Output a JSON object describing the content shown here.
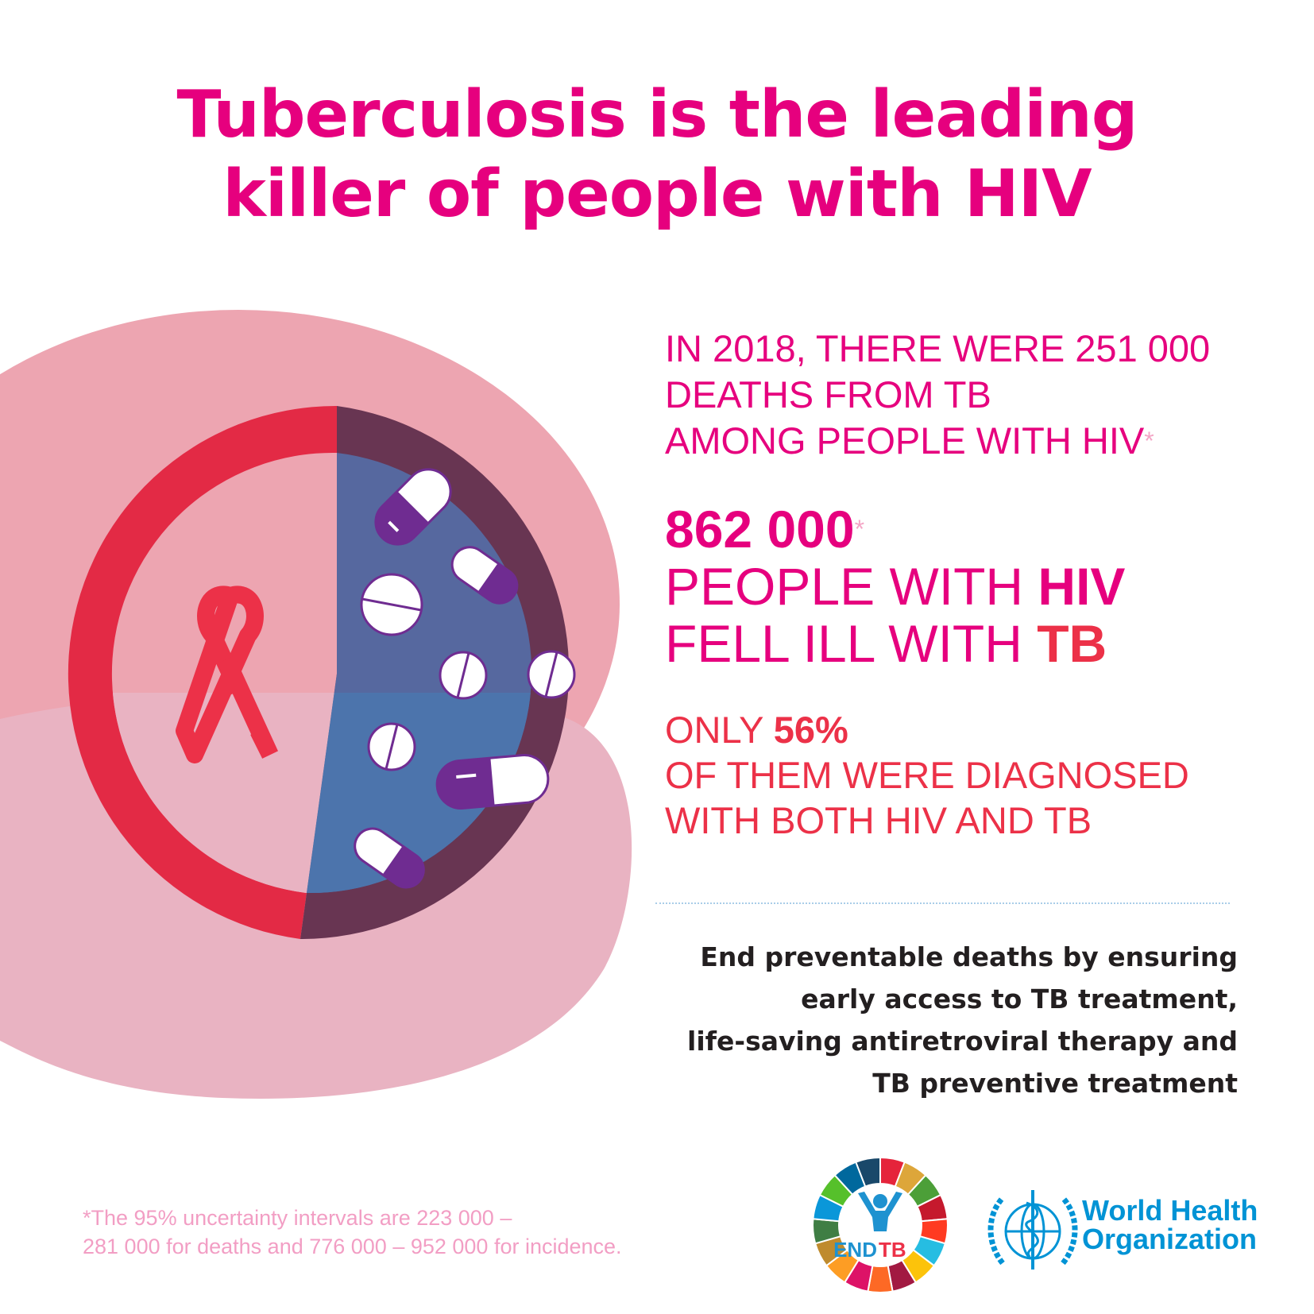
{
  "title": {
    "line1": "Tuberculosis is the leading",
    "line2": "killer of people with HIV"
  },
  "stats": {
    "deaths": {
      "line1": "IN 2018, THERE WERE 251 000",
      "line2": "DEATHS FROM TB",
      "line3": "AMONG PEOPLE WITH HIV",
      "asterisk": "*"
    },
    "incidence": {
      "number": "862 000",
      "asterisk": "*",
      "line2_prefix": "PEOPLE WITH ",
      "line2_bold": "HIV",
      "line3_prefix": "FELL ILL WITH ",
      "line3_bold": "TB"
    },
    "diagnosed": {
      "prefix": "ONLY ",
      "percent": "56%",
      "line2": "OF THEM WERE DIAGNOSED",
      "line3": "WITH BOTH HIV AND TB",
      "value_percent": 56
    }
  },
  "call_to_action": {
    "line1": "End preventable deaths by ensuring",
    "line2": "early access to TB treatment,",
    "line3": "life-saving antiretroviral therapy and",
    "line4": "TB preventive treatment"
  },
  "footnote": {
    "line1": "*The 95% uncertainty intervals are 223 000 –",
    "line2": "281 000 for deaths and 776 000 – 952 000 for incidence."
  },
  "logos": {
    "endtb": {
      "end": "END",
      "tb": "TB"
    },
    "who": {
      "line1": "World Health",
      "line2": "Organization"
    }
  },
  "colors": {
    "magenta": "#e6007e",
    "red": "#ec3148",
    "ring_red": "#e32a45",
    "ring_dark": "#683552",
    "blue": "#4c74ac",
    "purple": "#6f2c91",
    "who_blue": "#0093d5"
  },
  "icons": [
    "red-ribbon-icon",
    "capsule-icon",
    "tablet-icon",
    "end-tb-logo",
    "who-emblem"
  ]
}
